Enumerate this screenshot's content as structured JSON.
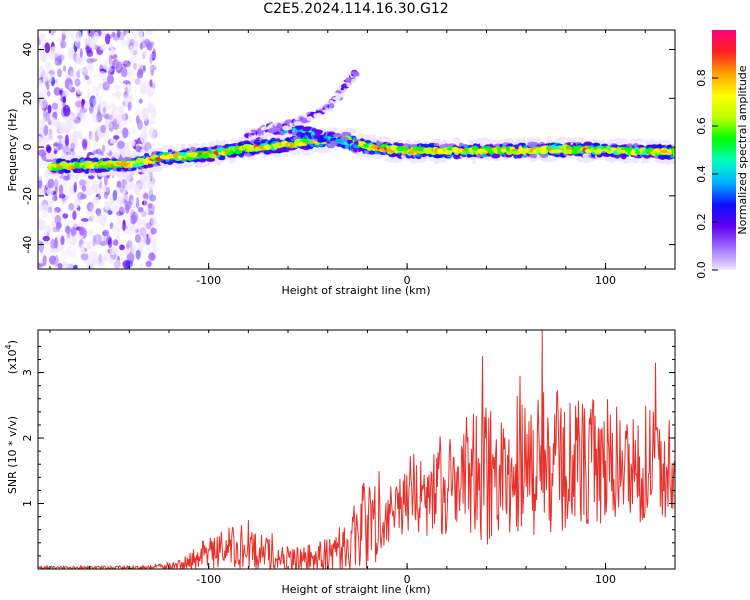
{
  "title": "C2E5.2024.114.16.30.G12",
  "colors": {
    "line": "#e8302a",
    "frame": "#000000",
    "background": "#ffffff"
  },
  "chart_data": [
    {
      "type": "heatmap",
      "title": "",
      "xlabel": "Height of straight line (km)",
      "ylabel": "Frequency (Hz)",
      "xlim": [
        -186,
        135
      ],
      "ylim": [
        -50,
        48
      ],
      "xticks": [
        -100,
        0,
        100
      ],
      "yticks": [
        -40,
        -20,
        0,
        20,
        40
      ],
      "colorbar": {
        "label": "Normalized spectral amplitude",
        "range": [
          0.0,
          1.0
        ],
        "ticks": [
          "0.0",
          "0.2",
          "0.4",
          "0.6",
          "0.8"
        ],
        "colors": [
          "#f0e6ff",
          "#a070ff",
          "#6000f0",
          "#1010ff",
          "#00b0ff",
          "#00ffc0",
          "#00ff00",
          "#c0ff00",
          "#ffff00",
          "#ffa000",
          "#ff2020",
          "#ff0080"
        ]
      },
      "features": {
        "noise_region_x": [
          -186,
          -135
        ],
        "main_track": [
          {
            "x": -180,
            "y": -8
          },
          {
            "x": -160,
            "y": -7.5
          },
          {
            "x": -140,
            "y": -7
          },
          {
            "x": -120,
            "y": -4
          },
          {
            "x": -100,
            "y": -3
          },
          {
            "x": -80,
            "y": -0.5
          },
          {
            "x": -60,
            "y": 1
          },
          {
            "x": -45,
            "y": 2.5
          },
          {
            "x": -30,
            "y": 3
          },
          {
            "x": -20,
            "y": 0
          },
          {
            "x": 0,
            "y": -1.5
          },
          {
            "x": 40,
            "y": -1.5
          },
          {
            "x": 80,
            "y": -1
          },
          {
            "x": 135,
            "y": -2
          }
        ],
        "secondary_track": [
          {
            "x": -80,
            "y": 5
          },
          {
            "x": -65,
            "y": 8
          },
          {
            "x": -50,
            "y": 12
          },
          {
            "x": -40,
            "y": 16
          },
          {
            "x": -32,
            "y": 24
          },
          {
            "x": -25,
            "y": 31
          }
        ],
        "arc_track": [
          {
            "x": -75,
            "y": 5
          },
          {
            "x": -68,
            "y": 8
          },
          {
            "x": -55,
            "y": 7
          },
          {
            "x": -40,
            "y": 4
          },
          {
            "x": -25,
            "y": 0
          }
        ]
      }
    },
    {
      "type": "line",
      "title": "",
      "xlabel": "Height of straight line (km)",
      "ylabel": "SNR (10 * v/v)",
      "yscale_label": "(x10",
      "yscale_exp": "4",
      "xlim": [
        -186,
        135
      ],
      "ylim": [
        0,
        3.65
      ],
      "xticks": [
        -100,
        0,
        100
      ],
      "yticks": [
        1,
        2,
        3
      ],
      "envelope": [
        {
          "x": -186,
          "base": 0.02,
          "amp": 0.02
        },
        {
          "x": -130,
          "base": 0.02,
          "amp": 0.03
        },
        {
          "x": -115,
          "base": 0.05,
          "amp": 0.08
        },
        {
          "x": -100,
          "base": 0.25,
          "amp": 0.25
        },
        {
          "x": -85,
          "base": 0.35,
          "amp": 0.35
        },
        {
          "x": -75,
          "base": 0.25,
          "amp": 0.3
        },
        {
          "x": -60,
          "base": 0.15,
          "amp": 0.2
        },
        {
          "x": -45,
          "base": 0.15,
          "amp": 0.25
        },
        {
          "x": -30,
          "base": 0.35,
          "amp": 0.5
        },
        {
          "x": -20,
          "base": 0.7,
          "amp": 0.8
        },
        {
          "x": -10,
          "base": 1.0,
          "amp": 0.6
        },
        {
          "x": 0,
          "base": 1.1,
          "amp": 0.6
        },
        {
          "x": 20,
          "base": 1.3,
          "amp": 0.8
        },
        {
          "x": 40,
          "base": 1.45,
          "amp": 1.1
        },
        {
          "x": 60,
          "base": 1.6,
          "amp": 1.2
        },
        {
          "x": 80,
          "base": 1.6,
          "amp": 1.1
        },
        {
          "x": 100,
          "base": 1.6,
          "amp": 1.0
        },
        {
          "x": 120,
          "base": 1.6,
          "amp": 0.9
        },
        {
          "x": 135,
          "base": 1.6,
          "amp": 0.8
        }
      ],
      "peaks": [
        {
          "x": 38,
          "y": 3.25
        },
        {
          "x": 68,
          "y": 3.65
        },
        {
          "x": 57,
          "y": 2.95
        },
        {
          "x": 125,
          "y": 3.15
        },
        {
          "x": -80,
          "y": 0.75
        },
        {
          "x": -68,
          "y": 0.55
        }
      ]
    }
  ]
}
